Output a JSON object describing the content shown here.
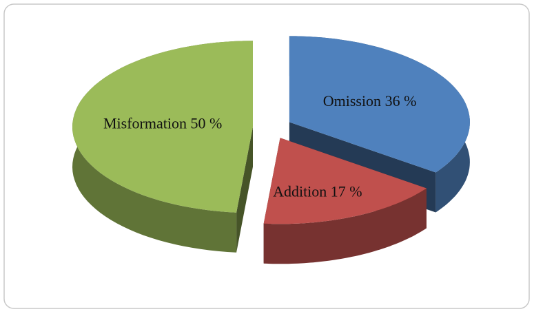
{
  "chart_data": {
    "type": "pie3d",
    "categories": [
      "Omission",
      "Addition",
      "Misformation"
    ],
    "values": [
      36,
      17,
      50
    ],
    "value_labels": [
      "36 %",
      "17 %",
      "50 %"
    ],
    "colors": [
      "#4f81bd",
      "#c0504d",
      "#9bbb59"
    ]
  }
}
